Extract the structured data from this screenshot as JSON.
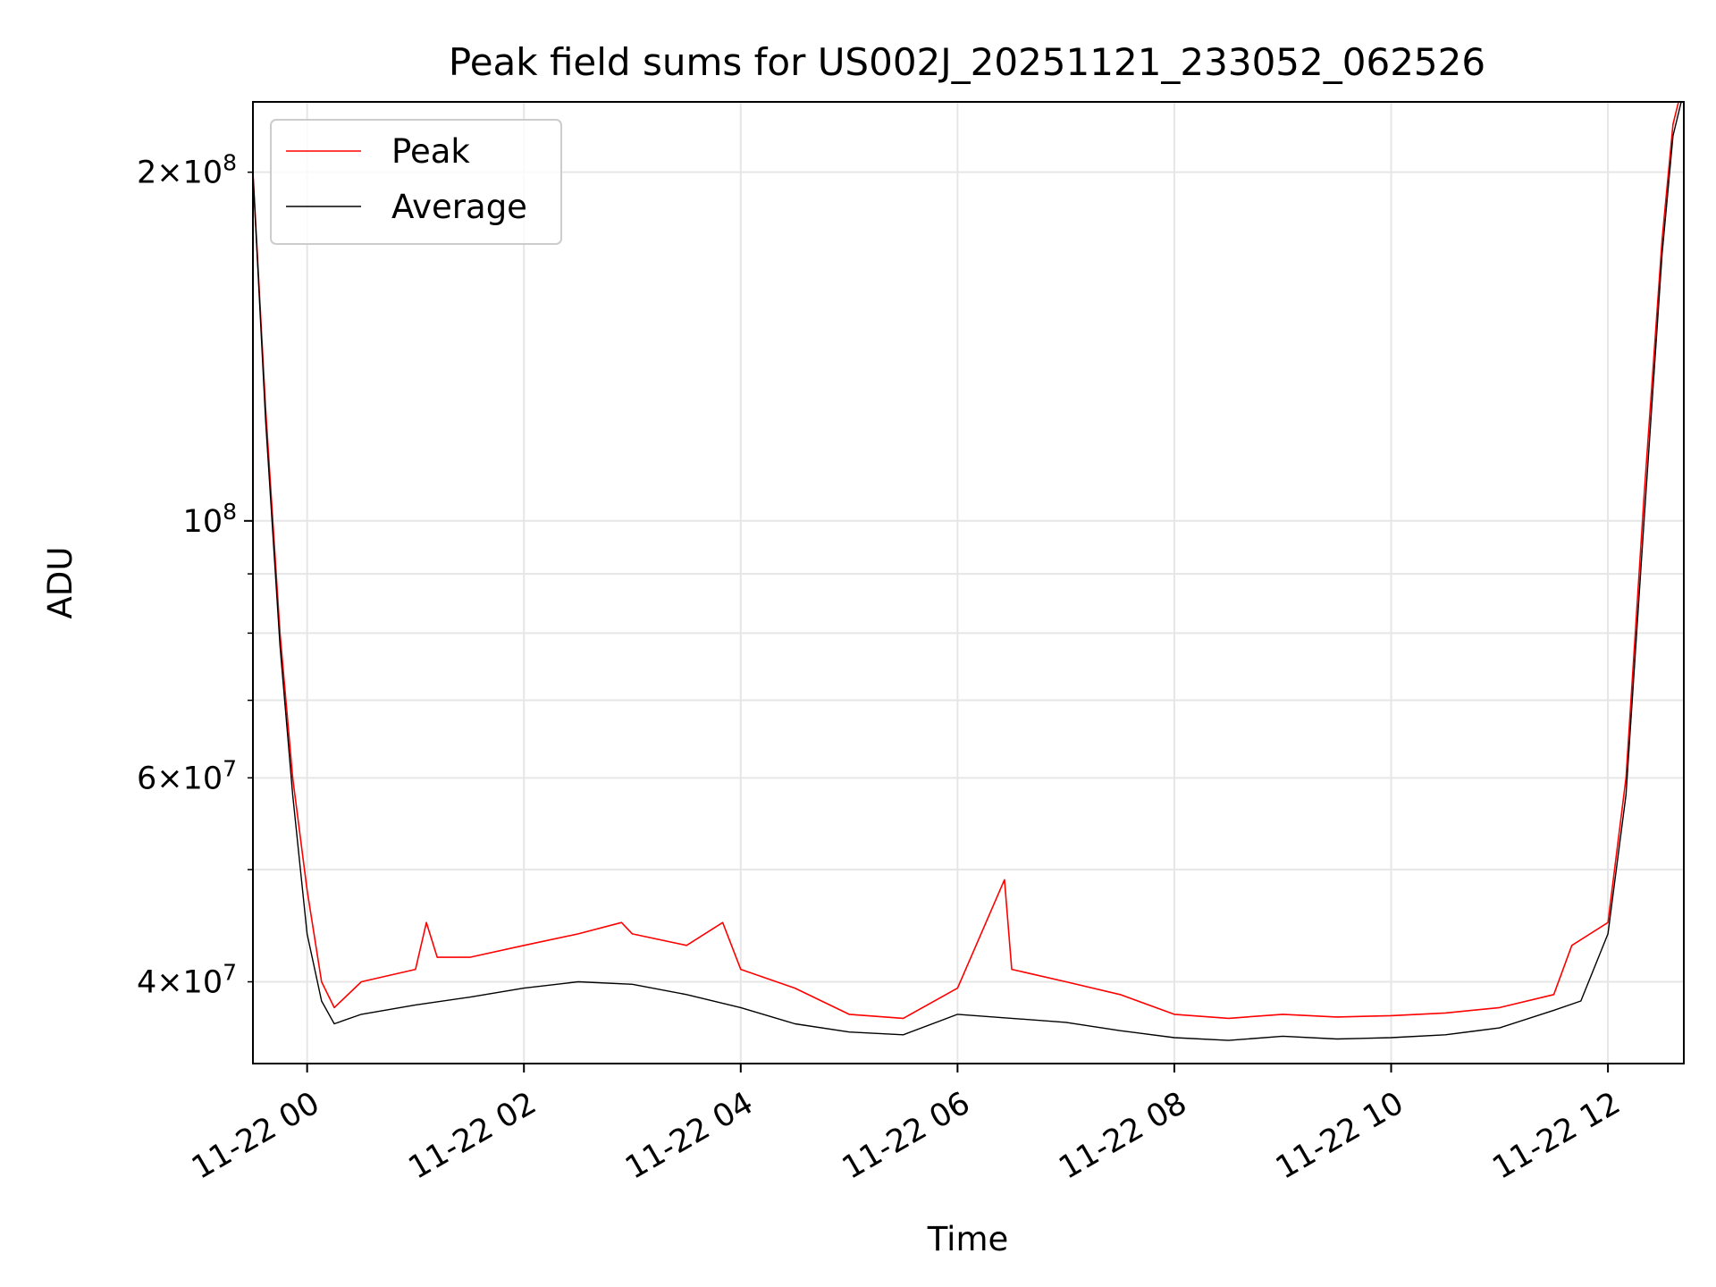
{
  "chart_data": {
    "type": "line",
    "title": "Peak field sums for US002J_20251121_233052_062526",
    "xlabel": "Time",
    "ylabel": "ADU",
    "y_scale": "log",
    "grid": true,
    "legend_placement": "upper-left",
    "xlim": [
      "2025-11-21 23:30",
      "2025-11-22 12:42"
    ],
    "ylim": [
      34000000,
      230000000
    ],
    "x_ticks": [
      {
        "value": "2025-11-22 00:00",
        "label": "11-22 00"
      },
      {
        "value": "2025-11-22 02:00",
        "label": "11-22 02"
      },
      {
        "value": "2025-11-22 04:00",
        "label": "11-22 04"
      },
      {
        "value": "2025-11-22 06:00",
        "label": "11-22 06"
      },
      {
        "value": "2025-11-22 08:00",
        "label": "11-22 08"
      },
      {
        "value": "2025-11-22 10:00",
        "label": "11-22 10"
      },
      {
        "value": "2025-11-22 12:00",
        "label": "11-22 12"
      }
    ],
    "y_major_ticks": [
      {
        "value": 100000000,
        "base": "10",
        "exp": "8"
      }
    ],
    "y_minor_ticks": [
      {
        "value": 40000000,
        "mant": "4",
        "base": "10",
        "exp": "7"
      },
      {
        "value": 60000000,
        "mant": "6",
        "base": "10",
        "exp": "7"
      },
      {
        "value": 200000000,
        "mant": "2",
        "base": "10",
        "exp": "8"
      }
    ],
    "y_minor_unlabeled": [
      50000000,
      70000000,
      80000000,
      90000000
    ],
    "series": [
      {
        "name": "Peak",
        "color": "#ff0000",
        "x": [
          "2025-11-21 23:30",
          "2025-11-21 23:37",
          "2025-11-21 23:45",
          "2025-11-21 23:52",
          "2025-11-22 00:00",
          "2025-11-22 00:08",
          "2025-11-22 00:15",
          "2025-11-22 00:30",
          "2025-11-22 01:00",
          "2025-11-22 01:06",
          "2025-11-22 01:12",
          "2025-11-22 01:30",
          "2025-11-22 02:00",
          "2025-11-22 02:30",
          "2025-11-22 02:54",
          "2025-11-22 03:00",
          "2025-11-22 03:30",
          "2025-11-22 03:50",
          "2025-11-22 04:00",
          "2025-11-22 04:30",
          "2025-11-22 05:00",
          "2025-11-22 05:30",
          "2025-11-22 06:00",
          "2025-11-22 06:26",
          "2025-11-22 06:30",
          "2025-11-22 07:00",
          "2025-11-22 07:30",
          "2025-11-22 08:00",
          "2025-11-22 08:30",
          "2025-11-22 09:00",
          "2025-11-22 09:30",
          "2025-11-22 10:00",
          "2025-11-22 10:30",
          "2025-11-22 11:00",
          "2025-11-22 11:30",
          "2025-11-22 11:40",
          "2025-11-22 12:00",
          "2025-11-22 12:10",
          "2025-11-22 12:20",
          "2025-11-22 12:30",
          "2025-11-22 12:36",
          "2025-11-22 12:42"
        ],
        "values": [
          200000000,
          125000000,
          80000000,
          60000000,
          48000000,
          40000000,
          38000000,
          40000000,
          41000000,
          45000000,
          42000000,
          42000000,
          43000000,
          44000000,
          45000000,
          44000000,
          43000000,
          45000000,
          41000000,
          39500000,
          37500000,
          37200000,
          39500000,
          49000000,
          41000000,
          40000000,
          39000000,
          37500000,
          37200000,
          37500000,
          37300000,
          37400000,
          37600000,
          38000000,
          39000000,
          43000000,
          45000000,
          60000000,
          105000000,
          175000000,
          220000000,
          240000000
        ]
      },
      {
        "name": "Average",
        "color": "#000000",
        "x": [
          "2025-11-21 23:30",
          "2025-11-21 23:37",
          "2025-11-21 23:45",
          "2025-11-21 23:52",
          "2025-11-22 00:00",
          "2025-11-22 00:08",
          "2025-11-22 00:15",
          "2025-11-22 00:30",
          "2025-11-22 01:00",
          "2025-11-22 01:30",
          "2025-11-22 02:00",
          "2025-11-22 02:30",
          "2025-11-22 03:00",
          "2025-11-22 03:30",
          "2025-11-22 04:00",
          "2025-11-22 04:30",
          "2025-11-22 05:00",
          "2025-11-22 05:30",
          "2025-11-22 06:00",
          "2025-11-22 06:30",
          "2025-11-22 07:00",
          "2025-11-22 07:30",
          "2025-11-22 08:00",
          "2025-11-22 08:30",
          "2025-11-22 09:00",
          "2025-11-22 09:30",
          "2025-11-22 10:00",
          "2025-11-22 10:30",
          "2025-11-22 11:00",
          "2025-11-22 11:30",
          "2025-11-22 11:45",
          "2025-11-22 12:00",
          "2025-11-22 12:10",
          "2025-11-22 12:20",
          "2025-11-22 12:30",
          "2025-11-22 12:36",
          "2025-11-22 12:42"
        ],
        "values": [
          200000000,
          122000000,
          78000000,
          58000000,
          44000000,
          38500000,
          36800000,
          37500000,
          38200000,
          38800000,
          39500000,
          40000000,
          39800000,
          39000000,
          38000000,
          36800000,
          36200000,
          36000000,
          37500000,
          37200000,
          36900000,
          36300000,
          35800000,
          35600000,
          35900000,
          35700000,
          35800000,
          36000000,
          36500000,
          37800000,
          38500000,
          44000000,
          58000000,
          100000000,
          170000000,
          215000000,
          235000000
        ]
      }
    ]
  }
}
